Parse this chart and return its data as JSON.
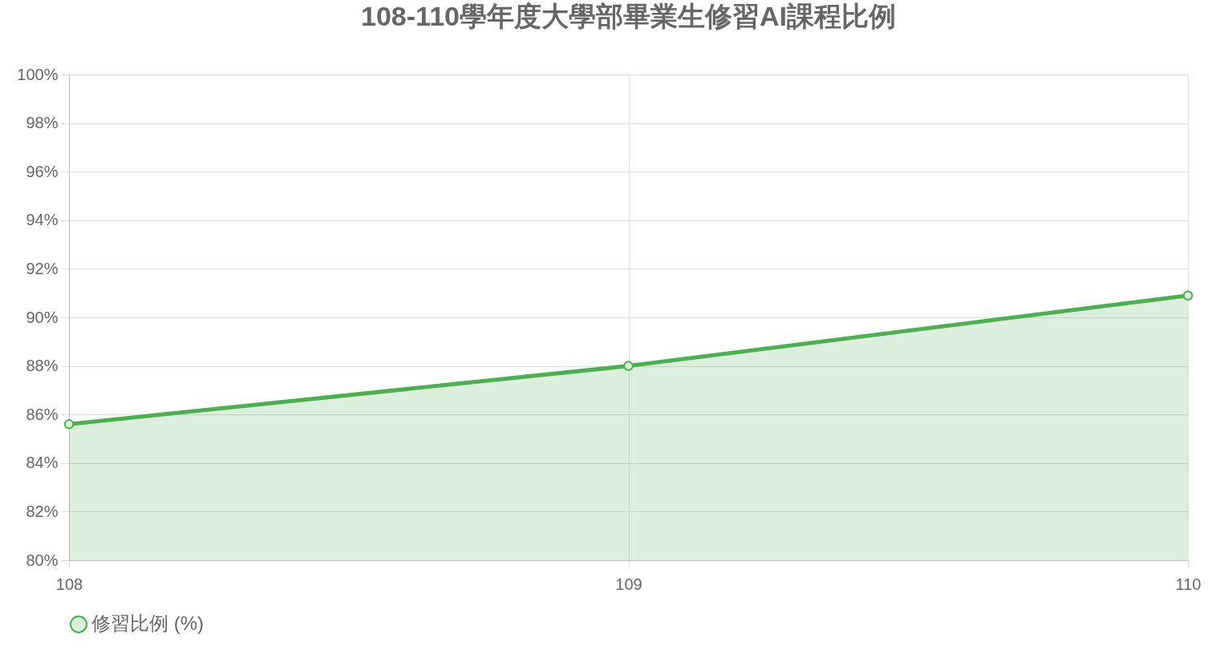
{
  "chart_data": {
    "type": "area",
    "title": "108-110學年度大學部畢業生修習AI課程比例",
    "categories": [
      "108",
      "109",
      "110"
    ],
    "series": [
      {
        "name": "修習比例 (%)",
        "color": "#4caf50",
        "values": [
          85.6,
          88.0,
          90.9
        ]
      }
    ],
    "ylim": [
      80,
      100
    ],
    "yticks": [
      {
        "value": 80,
        "label": "80%"
      },
      {
        "value": 82,
        "label": "82%"
      },
      {
        "value": 84,
        "label": "84%"
      },
      {
        "value": 86,
        "label": "86%"
      },
      {
        "value": 88,
        "label": "88%"
      },
      {
        "value": 90,
        "label": "90%"
      },
      {
        "value": 92,
        "label": "92%"
      },
      {
        "value": 94,
        "label": "94%"
      },
      {
        "value": 96,
        "label": "96%"
      },
      {
        "value": 98,
        "label": "98%"
      },
      {
        "value": 100,
        "label": "100%"
      }
    ],
    "grid": true,
    "legend": "bottom",
    "marker": "circle"
  }
}
